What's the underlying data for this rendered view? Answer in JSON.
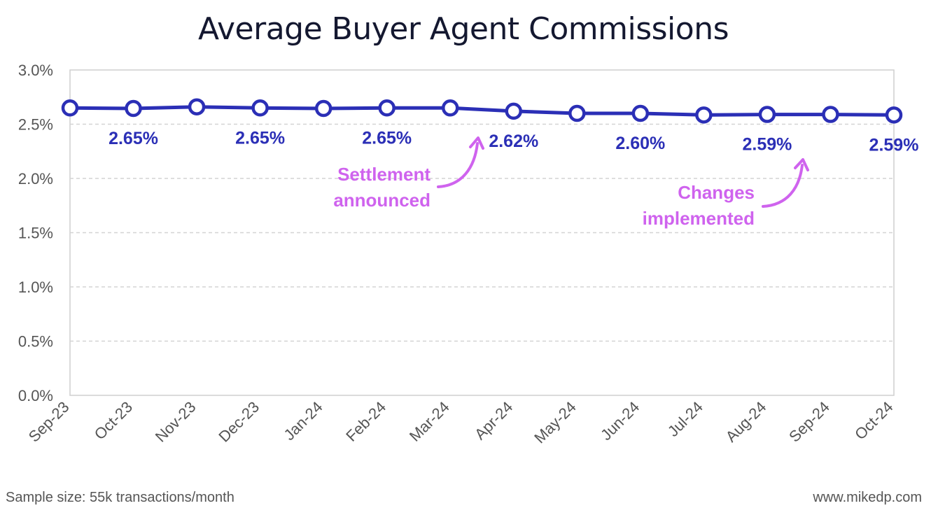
{
  "chart_data": {
    "type": "line",
    "title": "Average Buyer Agent Commissions",
    "categories": [
      "Sep-23",
      "Oct-23",
      "Nov-23",
      "Dec-23",
      "Jan-24",
      "Feb-24",
      "Mar-24",
      "Apr-24",
      "May-24",
      "Jun-24",
      "Jul-24",
      "Aug-24",
      "Sep-24",
      "Oct-24"
    ],
    "series": [
      {
        "name": "Average buyer agent commission",
        "values": [
          2.65,
          2.645,
          2.66,
          2.65,
          2.645,
          2.65,
          2.65,
          2.62,
          2.6,
          2.6,
          2.585,
          2.59,
          2.59,
          2.585
        ]
      }
    ],
    "data_labels": [
      {
        "index": 1,
        "text": "2.65%"
      },
      {
        "index": 3,
        "text": "2.65%"
      },
      {
        "index": 5,
        "text": "2.65%"
      },
      {
        "index": 7,
        "text": "2.62%"
      },
      {
        "index": 9,
        "text": "2.60%"
      },
      {
        "index": 11,
        "text": "2.59%"
      },
      {
        "index": 13,
        "text": "2.59%"
      }
    ],
    "ylim": [
      0,
      3.0
    ],
    "y_ticks": [
      0.0,
      0.5,
      1.0,
      1.5,
      2.0,
      2.5,
      3.0
    ],
    "y_tick_labels": [
      "0.0%",
      "0.5%",
      "1.0%",
      "1.5%",
      "2.0%",
      "2.5%",
      "3.0%"
    ],
    "xlabel": "",
    "ylabel": "",
    "grid": true,
    "annotations": [
      {
        "lines": [
          "Settlement",
          "announced"
        ],
        "points_to": "Apr-24"
      },
      {
        "lines": [
          "Changes",
          "implemented"
        ],
        "points_to": "Sep-24"
      }
    ],
    "line_color": "#2b2fb6",
    "annotation_color": "#cf63ee",
    "footer_left": "Sample size: 55k transactions/month",
    "footer_right": "www.mikedp.com"
  }
}
